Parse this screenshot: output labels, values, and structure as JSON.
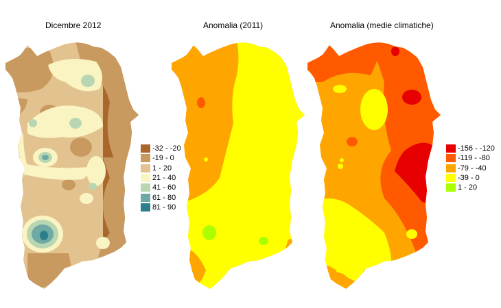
{
  "maps": [
    {
      "title": "Dicembre 2012",
      "legend": [
        {
          "label": "-32 - -20",
          "color": "#a9672c"
        },
        {
          "label": "-19 - 0",
          "color": "#c99a5f"
        },
        {
          "label": "1 - 20",
          "color": "#e2c38f"
        },
        {
          "label": "21 - 40",
          "color": "#f9f4c2"
        },
        {
          "label": "41 - 60",
          "color": "#b9d6b3"
        },
        {
          "label": "61 - 80",
          "color": "#6ea9a3"
        },
        {
          "label": "81 - 90",
          "color": "#2b7f8a"
        }
      ]
    },
    {
      "title": "Anomalia (2011)",
      "legend": []
    },
    {
      "title": "Anomalia (medie climatiche)",
      "legend": [
        {
          "label": "-156 - -120",
          "color": "#e60000"
        },
        {
          "label": "-119 - -80",
          "color": "#ff5a00"
        },
        {
          "label": "-79 - -40",
          "color": "#ffa500"
        },
        {
          "label": "-39 - 0",
          "color": "#ffff00"
        },
        {
          "label": "1 - 20",
          "color": "#aaff00"
        }
      ]
    }
  ]
}
